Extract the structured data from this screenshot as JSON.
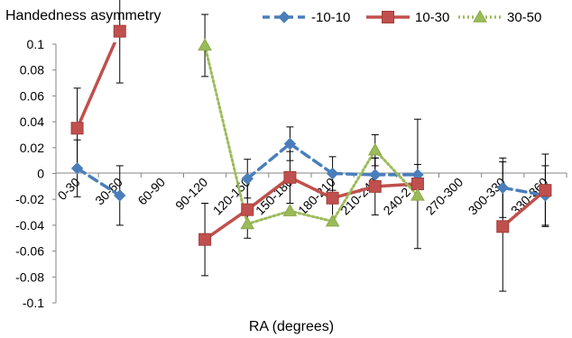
{
  "chart_data": {
    "type": "line",
    "title": "",
    "ylabel": "Handedness asymmetry",
    "xlabel": "RA (degrees)",
    "ylim": [
      -0.1,
      0.1
    ],
    "yticks": [
      0.1,
      0.08,
      0.06,
      0.04,
      0.02,
      0,
      -0.02,
      -0.04,
      -0.06,
      -0.08,
      -0.1
    ],
    "ytick_labels": [
      "0.1",
      "0.08",
      "0.06",
      "0.04",
      "0.02",
      "0",
      "-0.02",
      "-0.04",
      "-0.06",
      "-0.08",
      "-0.1"
    ],
    "categories": [
      "0-30",
      "30-60",
      "60-90",
      "90-120",
      "120-150",
      "150-180",
      "180-210",
      "210-240",
      "240-270",
      "270-300",
      "300-330",
      "330-360"
    ],
    "grid": false,
    "legend_position": "top",
    "series": [
      {
        "name": "-10-10",
        "color": "#4a7ebb",
        "line_style": "dashed",
        "marker": "diamond",
        "values": [
          0.004,
          -0.017,
          null,
          null,
          -0.004,
          0.023,
          0.0,
          -0.001,
          -0.001,
          null,
          -0.011,
          -0.017
        ],
        "error": [
          0.022,
          0.023,
          null,
          null,
          0.015,
          0.013,
          0.013,
          0.013,
          0.008,
          null,
          0.023,
          0.023
        ]
      },
      {
        "name": "10-30",
        "color": "#c0504d",
        "line_style": "solid",
        "marker": "square",
        "values": [
          0.035,
          0.11,
          null,
          -0.051,
          -0.028,
          -0.003,
          -0.019,
          -0.01,
          -0.008,
          null,
          -0.041,
          -0.013
        ],
        "error": [
          0.031,
          0.04,
          null,
          0.028,
          0.022,
          0.02,
          0.02,
          0.022,
          0.05,
          null,
          0.05,
          0.028
        ]
      },
      {
        "name": "30-50",
        "color": "#9bbb59",
        "line_style": "dotted",
        "marker": "triangle",
        "values": [
          null,
          null,
          null,
          0.099,
          -0.039,
          -0.029,
          -0.037,
          0.018,
          -0.017,
          null,
          null,
          null
        ],
        "error": [
          null,
          null,
          null,
          0.024,
          0.0,
          0.0,
          0.0,
          0.012,
          0.0,
          null,
          null,
          null
        ]
      }
    ]
  }
}
